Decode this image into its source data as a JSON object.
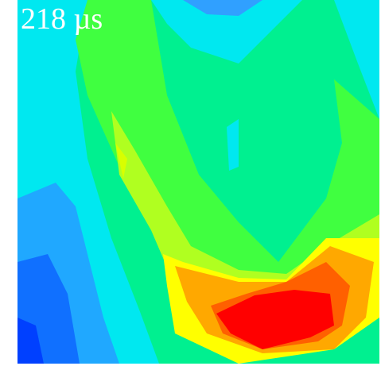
{
  "label": "218 µs"
}
